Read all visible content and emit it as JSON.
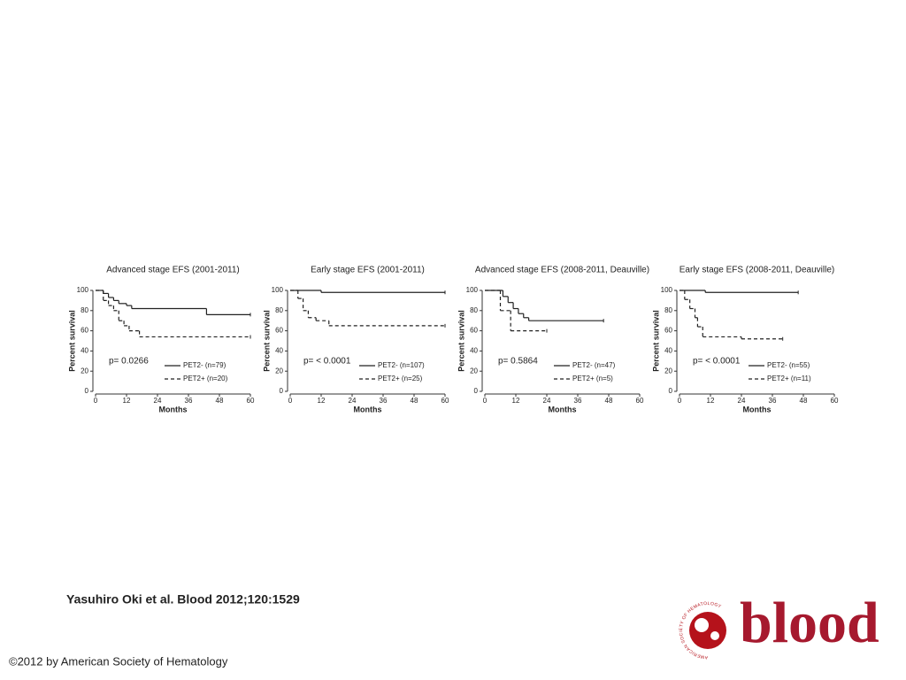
{
  "chart_data": [
    {
      "type": "line",
      "step": "post",
      "title": "Advanced stage EFS (2001-2011)",
      "xlabel": "Months",
      "ylabel": "Percent survival",
      "xlim": [
        0,
        60
      ],
      "xticks": [
        0,
        12,
        24,
        36,
        48,
        60
      ],
      "ylim": [
        0,
        100
      ],
      "yticks": [
        0,
        20,
        40,
        60,
        80,
        100
      ],
      "annotation": "p= 0.0266",
      "series": [
        {
          "name": "PET2- (n=79)",
          "color": "#222222",
          "dashed": false,
          "x": [
            0,
            3,
            5,
            7,
            9,
            12,
            14,
            43,
            60
          ],
          "values": [
            100,
            97,
            93,
            90,
            87,
            85,
            82,
            76,
            76
          ]
        },
        {
          "name": "PET2+ (n=20)",
          "color": "#222222",
          "dashed": true,
          "x": [
            0,
            3,
            5,
            7,
            9,
            11,
            13,
            17,
            60
          ],
          "values": [
            100,
            90,
            85,
            80,
            70,
            65,
            60,
            54,
            54
          ]
        }
      ]
    },
    {
      "type": "line",
      "step": "post",
      "title": "Early stage EFS (2001-2011)",
      "xlabel": "Months",
      "ylabel": "Percent survival",
      "xlim": [
        0,
        60
      ],
      "xticks": [
        0,
        12,
        24,
        36,
        48,
        60
      ],
      "ylim": [
        0,
        100
      ],
      "yticks": [
        0,
        20,
        40,
        60,
        80,
        100
      ],
      "annotation": "p= < 0.0001",
      "series": [
        {
          "name": "PET2- (n=107)",
          "color": "#222222",
          "dashed": false,
          "x": [
            0,
            12,
            60
          ],
          "values": [
            100,
            98,
            98
          ]
        },
        {
          "name": "PET2+ (n=25)",
          "color": "#222222",
          "dashed": true,
          "x": [
            0,
            3,
            5,
            7,
            10,
            15,
            60
          ],
          "values": [
            100,
            92,
            80,
            73,
            70,
            65,
            65
          ]
        }
      ]
    },
    {
      "type": "line",
      "step": "post",
      "title": "Advanced stage EFS (2008-2011, Deauville)",
      "xlabel": "Months",
      "ylabel": "Percent survival",
      "xlim": [
        0,
        60
      ],
      "xticks": [
        0,
        12,
        24,
        36,
        48,
        60
      ],
      "ylim": [
        0,
        100
      ],
      "yticks": [
        0,
        20,
        40,
        60,
        80,
        100
      ],
      "annotation": "p= 0.5864",
      "series": [
        {
          "name": "PET2- (n=47)",
          "color": "#222222",
          "dashed": false,
          "x": [
            0,
            7,
            9,
            11,
            13,
            15,
            17,
            46
          ],
          "values": [
            100,
            94,
            88,
            82,
            77,
            73,
            70,
            70
          ]
        },
        {
          "name": "PET2+ (n=5)",
          "color": "#222222",
          "dashed": true,
          "x": [
            0,
            6,
            10,
            24
          ],
          "values": [
            100,
            80,
            60,
            60
          ]
        }
      ]
    },
    {
      "type": "line",
      "step": "post",
      "title": "Early stage EFS (2008-2011, Deauville)",
      "xlabel": "Months",
      "ylabel": "Percent survival",
      "xlim": [
        0,
        60
      ],
      "xticks": [
        0,
        12,
        24,
        36,
        48,
        60
      ],
      "ylim": [
        0,
        100
      ],
      "yticks": [
        0,
        20,
        40,
        60,
        80,
        100
      ],
      "annotation": "p= < 0.0001",
      "series": [
        {
          "name": "PET2- (n=55)",
          "color": "#222222",
          "dashed": false,
          "x": [
            0,
            10,
            46
          ],
          "values": [
            100,
            98,
            98
          ]
        },
        {
          "name": "PET2+ (n=11)",
          "color": "#222222",
          "dashed": true,
          "x": [
            0,
            2,
            4,
            6,
            7,
            9,
            24,
            40
          ],
          "values": [
            100,
            91,
            82,
            73,
            64,
            54,
            52,
            52
          ]
        }
      ]
    }
  ],
  "citation": "Yasuhiro Oki et al. Blood 2012;120:1529",
  "copyright": "©2012 by American Society of Hematology",
  "logo": {
    "text": "blood",
    "ring": "AMERICAN SOCIETY OF HEMATOLOGY"
  }
}
